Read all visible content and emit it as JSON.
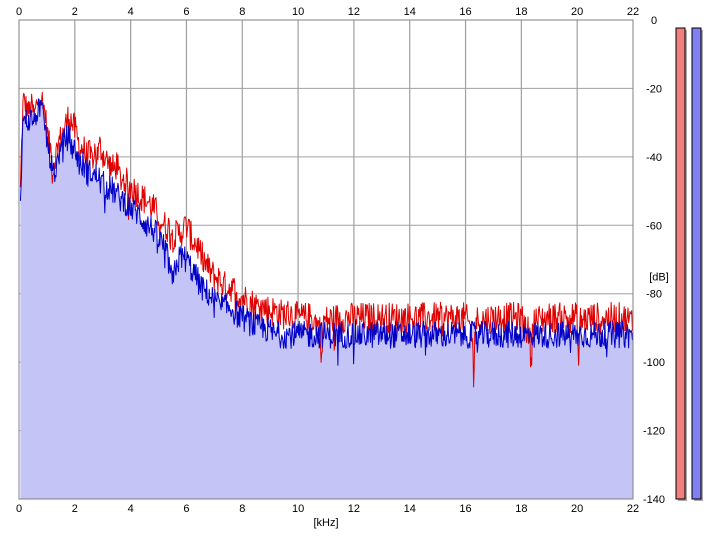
{
  "window": {
    "background_color": "#ffffff"
  },
  "chart_data": {
    "type": "area",
    "xlabel": "[kHz]",
    "ylabel": "[dB]",
    "x_unit": "kHz",
    "y_unit": "dB",
    "xlim": [
      0,
      22
    ],
    "ylim": [
      -140,
      0
    ],
    "x_ticks": [
      0,
      2,
      4,
      6,
      8,
      10,
      12,
      14,
      16,
      18,
      20,
      22
    ],
    "x_tick_labels": [
      "0",
      "2",
      "4",
      "6",
      "8",
      "10",
      "12",
      "14",
      "16",
      "18",
      "20",
      "22"
    ],
    "y_ticks": [
      0,
      -20,
      -40,
      -60,
      -80,
      -100,
      -120,
      -140
    ],
    "y_tick_labels": [
      "0",
      "-20",
      "-40",
      "-60",
      "-80",
      "-100",
      "-120",
      "-140"
    ],
    "grid": true,
    "plot_background_color": "#ffffff",
    "grid_color": "#a0a0a0",
    "area_fill_color": "#c4c4f6",
    "area_follows_series": "Blue",
    "series": [
      {
        "color": "#e00000",
        "points": [
          [
            0.05,
            -50
          ],
          [
            0.1,
            -35
          ],
          [
            0.15,
            -23
          ],
          [
            0.25,
            -25
          ],
          [
            0.35,
            -27
          ],
          [
            0.45,
            -25
          ],
          [
            0.55,
            -28
          ],
          [
            0.65,
            -24
          ],
          [
            0.75,
            -22
          ],
          [
            0.85,
            -24
          ],
          [
            0.95,
            -28
          ],
          [
            1.05,
            -35
          ],
          [
            1.15,
            -38
          ],
          [
            1.2,
            -46
          ],
          [
            1.3,
            -40
          ],
          [
            1.4,
            -36
          ],
          [
            1.5,
            -34
          ],
          [
            1.6,
            -33
          ],
          [
            1.7,
            -30
          ],
          [
            1.8,
            -28
          ],
          [
            1.9,
            -30
          ],
          [
            2.0,
            -32
          ],
          [
            2.1,
            -35
          ],
          [
            2.2,
            -38
          ],
          [
            2.3,
            -37
          ],
          [
            2.4,
            -40
          ],
          [
            2.5,
            -39
          ],
          [
            2.6,
            -41
          ],
          [
            2.7,
            -38
          ],
          [
            2.8,
            -40
          ],
          [
            2.9,
            -37
          ],
          [
            3.0,
            -39
          ],
          [
            3.2,
            -42
          ],
          [
            3.4,
            -44
          ],
          [
            3.5,
            -42
          ],
          [
            3.6,
            -46
          ],
          [
            3.8,
            -47
          ],
          [
            4.0,
            -49
          ],
          [
            4.2,
            -50
          ],
          [
            4.4,
            -52
          ],
          [
            4.6,
            -53
          ],
          [
            4.8,
            -55
          ],
          [
            5.0,
            -57
          ],
          [
            5.2,
            -60
          ],
          [
            5.4,
            -61
          ],
          [
            5.6,
            -63
          ],
          [
            5.8,
            -62
          ],
          [
            6.0,
            -60
          ],
          [
            6.2,
            -64
          ],
          [
            6.4,
            -66
          ],
          [
            6.6,
            -70
          ],
          [
            6.8,
            -73
          ],
          [
            7.0,
            -75
          ],
          [
            7.2,
            -76
          ],
          [
            7.4,
            -78
          ],
          [
            7.6,
            -78
          ],
          [
            7.8,
            -80
          ],
          [
            8.0,
            -81
          ],
          [
            8.2,
            -82
          ],
          [
            8.4,
            -83
          ],
          [
            8.6,
            -84
          ],
          [
            8.8,
            -84
          ],
          [
            9.0,
            -85
          ],
          [
            9.2,
            -85
          ],
          [
            9.4,
            -86
          ],
          [
            9.6,
            -86
          ],
          [
            9.8,
            -86
          ],
          [
            10.0,
            -87
          ],
          [
            10.5,
            -87
          ],
          [
            10.8,
            -90
          ],
          [
            10.85,
            -102
          ],
          [
            10.9,
            -88
          ],
          [
            11.5,
            -87
          ],
          [
            12.0,
            -87
          ],
          [
            12.5,
            -87
          ],
          [
            13.0,
            -87
          ],
          [
            13.5,
            -87
          ],
          [
            14.0,
            -87
          ],
          [
            14.5,
            -87
          ],
          [
            15.0,
            -87
          ],
          [
            15.5,
            -87
          ],
          [
            16.0,
            -87
          ],
          [
            16.2,
            -90
          ],
          [
            16.3,
            -103
          ],
          [
            16.35,
            -88
          ],
          [
            17.0,
            -87
          ],
          [
            17.5,
            -87
          ],
          [
            18.0,
            -87
          ],
          [
            18.3,
            -92
          ],
          [
            18.35,
            -103
          ],
          [
            18.4,
            -88
          ],
          [
            19.0,
            -87
          ],
          [
            19.5,
            -87
          ],
          [
            20.0,
            -87
          ],
          [
            20.05,
            -102
          ],
          [
            20.1,
            -88
          ],
          [
            20.5,
            -87
          ],
          [
            21.0,
            -87
          ],
          [
            21.5,
            -87
          ],
          [
            22.0,
            -88
          ]
        ]
      },
      {
        "color": "#0000c8",
        "points": [
          [
            0.05,
            -52
          ],
          [
            0.1,
            -40
          ],
          [
            0.15,
            -28
          ],
          [
            0.25,
            -29
          ],
          [
            0.35,
            -30
          ],
          [
            0.45,
            -28
          ],
          [
            0.55,
            -30
          ],
          [
            0.65,
            -27
          ],
          [
            0.75,
            -25
          ],
          [
            0.85,
            -27
          ],
          [
            0.95,
            -32
          ],
          [
            1.05,
            -38
          ],
          [
            1.15,
            -42
          ],
          [
            1.3,
            -45
          ],
          [
            1.4,
            -40
          ],
          [
            1.5,
            -38
          ],
          [
            1.6,
            -36
          ],
          [
            1.7,
            -34
          ],
          [
            1.8,
            -35
          ],
          [
            1.9,
            -37
          ],
          [
            2.0,
            -38
          ],
          [
            2.1,
            -40
          ],
          [
            2.2,
            -43
          ],
          [
            2.3,
            -42
          ],
          [
            2.4,
            -44
          ],
          [
            2.5,
            -45
          ],
          [
            2.6,
            -44
          ],
          [
            2.7,
            -46
          ],
          [
            2.8,
            -45
          ],
          [
            2.9,
            -47
          ],
          [
            3.0,
            -48
          ],
          [
            3.2,
            -49
          ],
          [
            3.4,
            -50
          ],
          [
            3.6,
            -52
          ],
          [
            3.8,
            -53
          ],
          [
            4.0,
            -55
          ],
          [
            4.2,
            -56
          ],
          [
            4.4,
            -58
          ],
          [
            4.6,
            -60
          ],
          [
            4.8,
            -61
          ],
          [
            5.0,
            -64
          ],
          [
            5.2,
            -66
          ],
          [
            5.4,
            -72
          ],
          [
            5.5,
            -78
          ],
          [
            5.6,
            -72
          ],
          [
            5.8,
            -69
          ],
          [
            6.0,
            -70
          ],
          [
            6.2,
            -73
          ],
          [
            6.4,
            -76
          ],
          [
            6.6,
            -79
          ],
          [
            6.8,
            -80
          ],
          [
            7.0,
            -82
          ],
          [
            7.2,
            -83
          ],
          [
            7.4,
            -84
          ],
          [
            7.6,
            -84
          ],
          [
            7.8,
            -86
          ],
          [
            8.0,
            -87
          ],
          [
            8.2,
            -88
          ],
          [
            8.4,
            -89
          ],
          [
            8.6,
            -90
          ],
          [
            8.8,
            -90
          ],
          [
            9.0,
            -91
          ],
          [
            9.2,
            -92
          ],
          [
            9.4,
            -92
          ],
          [
            9.6,
            -92
          ],
          [
            9.8,
            -92
          ],
          [
            10.0,
            -92
          ],
          [
            10.5,
            -92
          ],
          [
            11.0,
            -92
          ],
          [
            11.5,
            -92
          ],
          [
            12.0,
            -92
          ],
          [
            12.5,
            -92
          ],
          [
            13.0,
            -92
          ],
          [
            13.5,
            -92
          ],
          [
            14.0,
            -92
          ],
          [
            14.5,
            -92
          ],
          [
            15.0,
            -92
          ],
          [
            15.5,
            -92
          ],
          [
            16.0,
            -92
          ],
          [
            16.5,
            -92
          ],
          [
            17.0,
            -92
          ],
          [
            17.5,
            -92
          ],
          [
            18.0,
            -92
          ],
          [
            18.5,
            -92
          ],
          [
            19.0,
            -92
          ],
          [
            19.5,
            -92
          ],
          [
            20.0,
            -92
          ],
          [
            20.5,
            -92
          ],
          [
            21.0,
            -92
          ],
          [
            21.5,
            -92
          ],
          [
            22.0,
            -92
          ]
        ]
      }
    ]
  },
  "level_meters": [
    {
      "fill_color": "#f08080",
      "level_fraction": 1.0
    },
    {
      "fill_color": "#8080f0",
      "level_fraction": 1.0
    }
  ]
}
